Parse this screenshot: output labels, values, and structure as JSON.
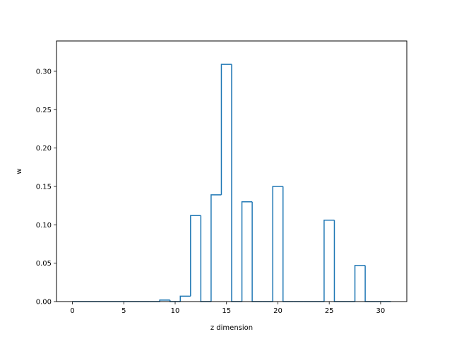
{
  "chart_data": {
    "type": "bar",
    "style": "step-outline",
    "xlabel": "z dimension",
    "ylabel": "w",
    "xlim": [
      -1.55,
      32.55
    ],
    "ylim": [
      0,
      0.3395
    ],
    "xticks": [
      0,
      5,
      10,
      15,
      20,
      25,
      30
    ],
    "yticks": [
      0.0,
      0.05,
      0.1,
      0.15,
      0.2,
      0.25,
      0.3
    ],
    "ytick_labels": [
      "0.00",
      "0.05",
      "0.10",
      "0.15",
      "0.20",
      "0.25",
      "0.30"
    ],
    "grid": false,
    "line_color": "#1f77b4",
    "x": [
      0,
      1,
      2,
      3,
      4,
      5,
      6,
      7,
      8,
      9,
      10,
      11,
      12,
      13,
      14,
      15,
      16,
      17,
      18,
      19,
      20,
      21,
      22,
      23,
      24,
      25,
      26,
      27,
      28,
      29,
      30,
      31
    ],
    "values": [
      0,
      0,
      0,
      0,
      0,
      0,
      0,
      0,
      0,
      0.002,
      0,
      0.007,
      0.112,
      0,
      0.139,
      0.309,
      0,
      0.13,
      0,
      0,
      0.15,
      0,
      0,
      0,
      0,
      0.106,
      0,
      0,
      0.047,
      0,
      0,
      0
    ]
  }
}
